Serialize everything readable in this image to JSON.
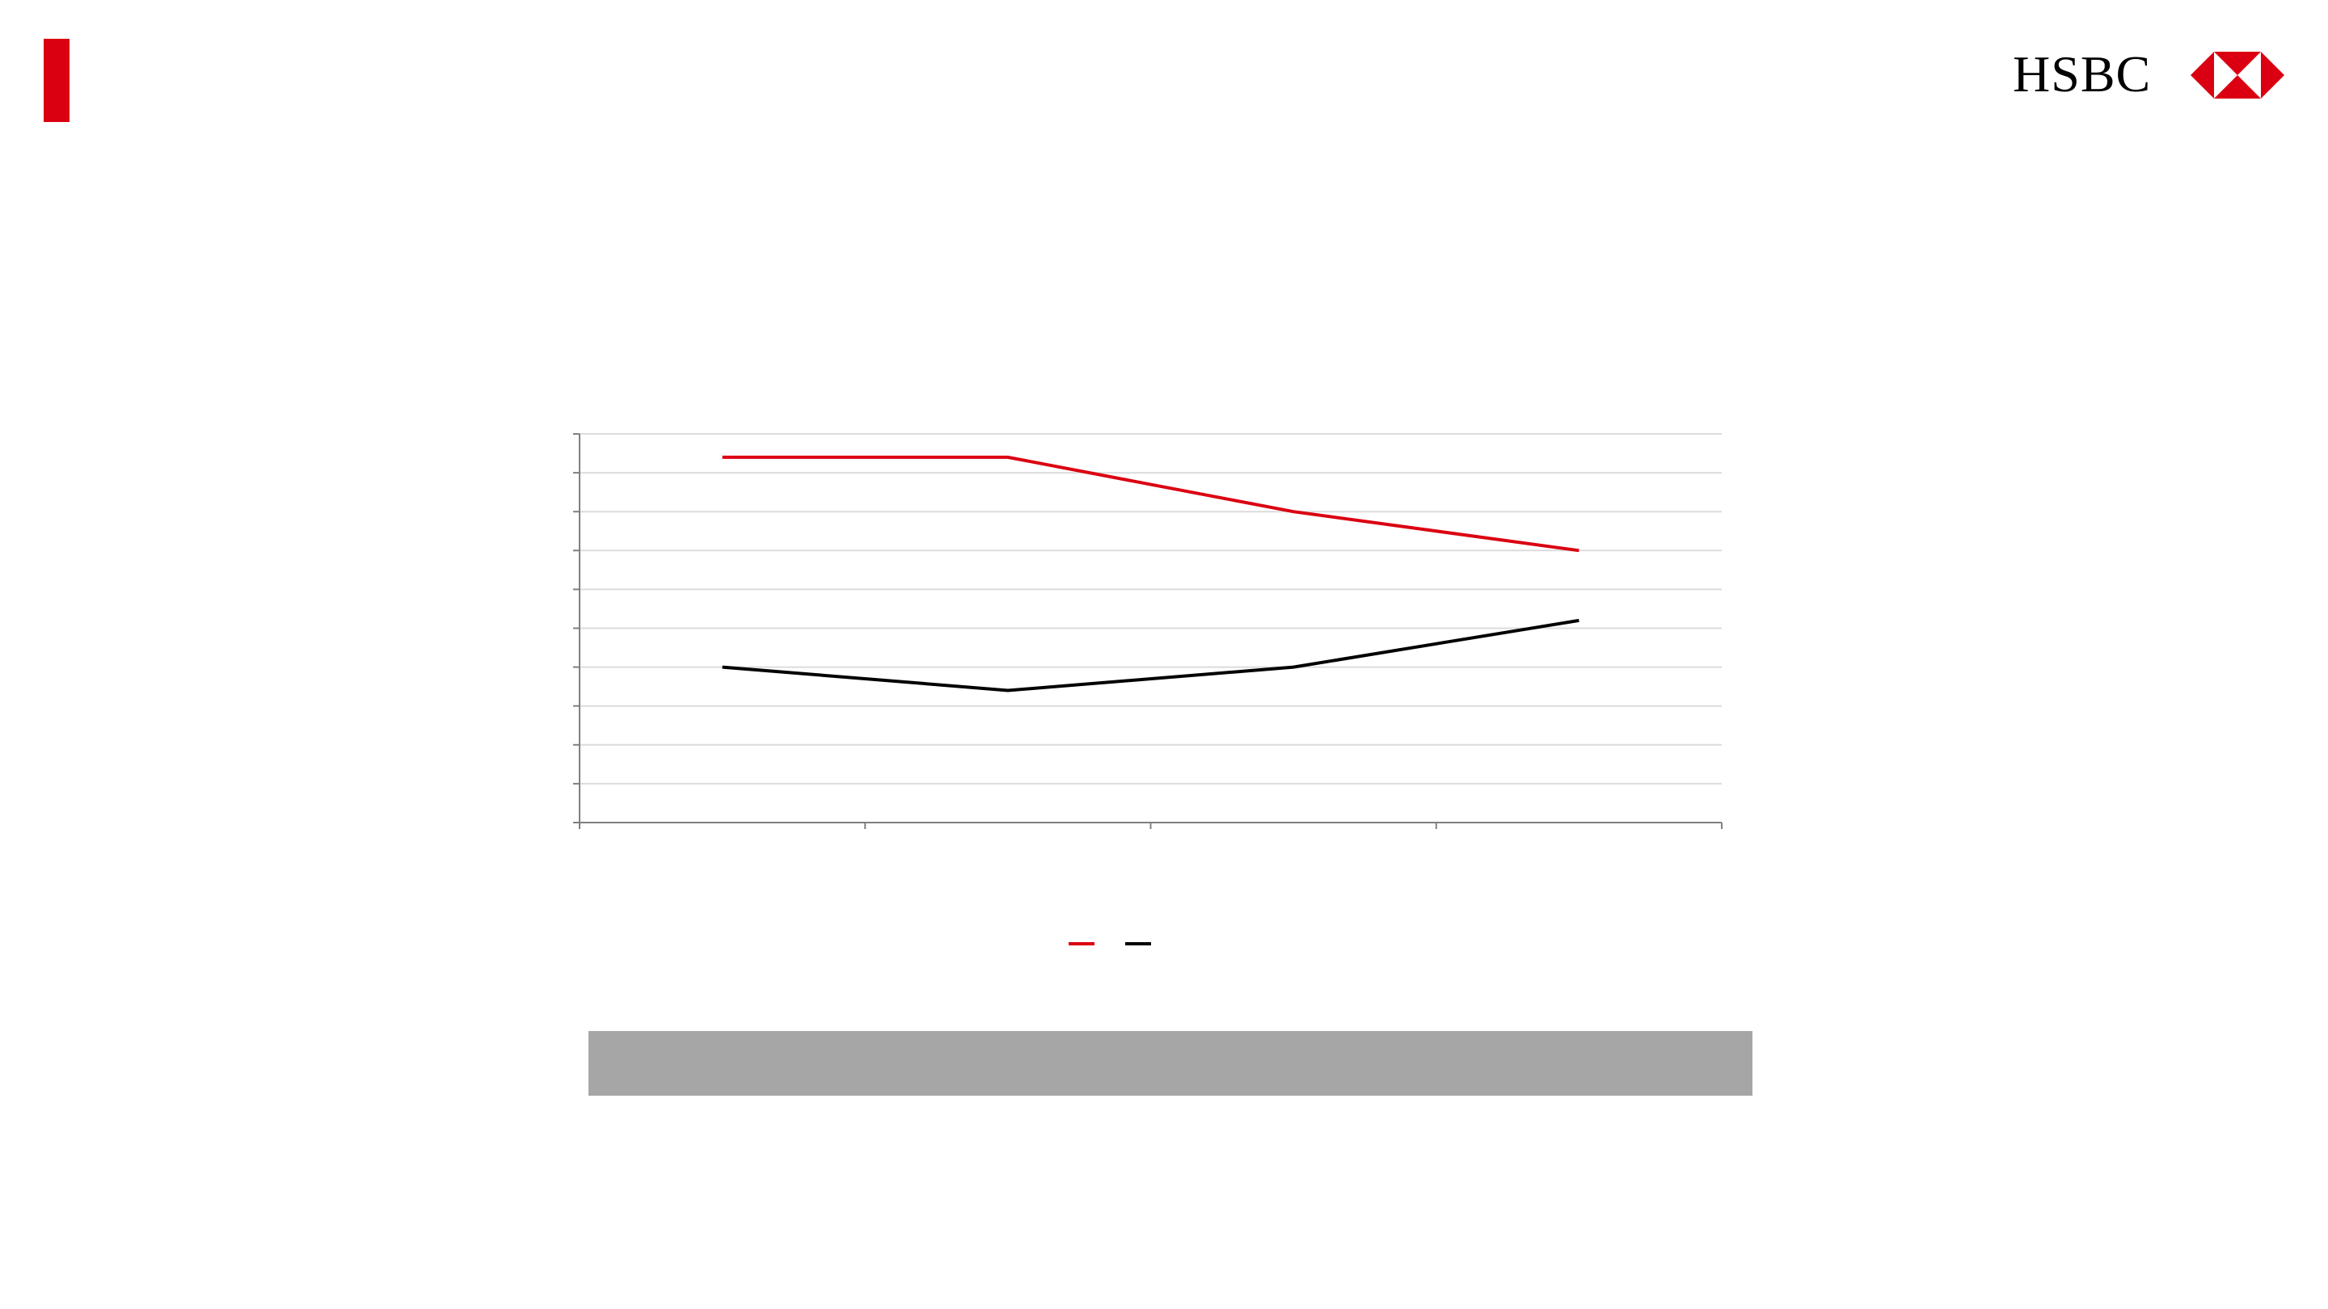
{
  "brand": {
    "name": "HSBC",
    "accent_color": "#db0011",
    "logo_icon": "hsbc-hexagon-icon"
  },
  "chart_data": {
    "type": "line",
    "title": "",
    "xlabel": "",
    "ylabel": "",
    "categories": [
      "",
      "",
      "",
      ""
    ],
    "y_tick_count": 11,
    "ylim": [
      0,
      10
    ],
    "grid": true,
    "legend_position": "bottom-center",
    "series": [
      {
        "color": "#db0011",
        "values": [
          9.4,
          9.4,
          8.0,
          7.0
        ]
      },
      {
        "color": "#000000",
        "values": [
          4.0,
          3.4,
          4.0,
          5.2
        ]
      }
    ]
  },
  "banner": {
    "color": "#a6a6a6",
    "text": ""
  }
}
